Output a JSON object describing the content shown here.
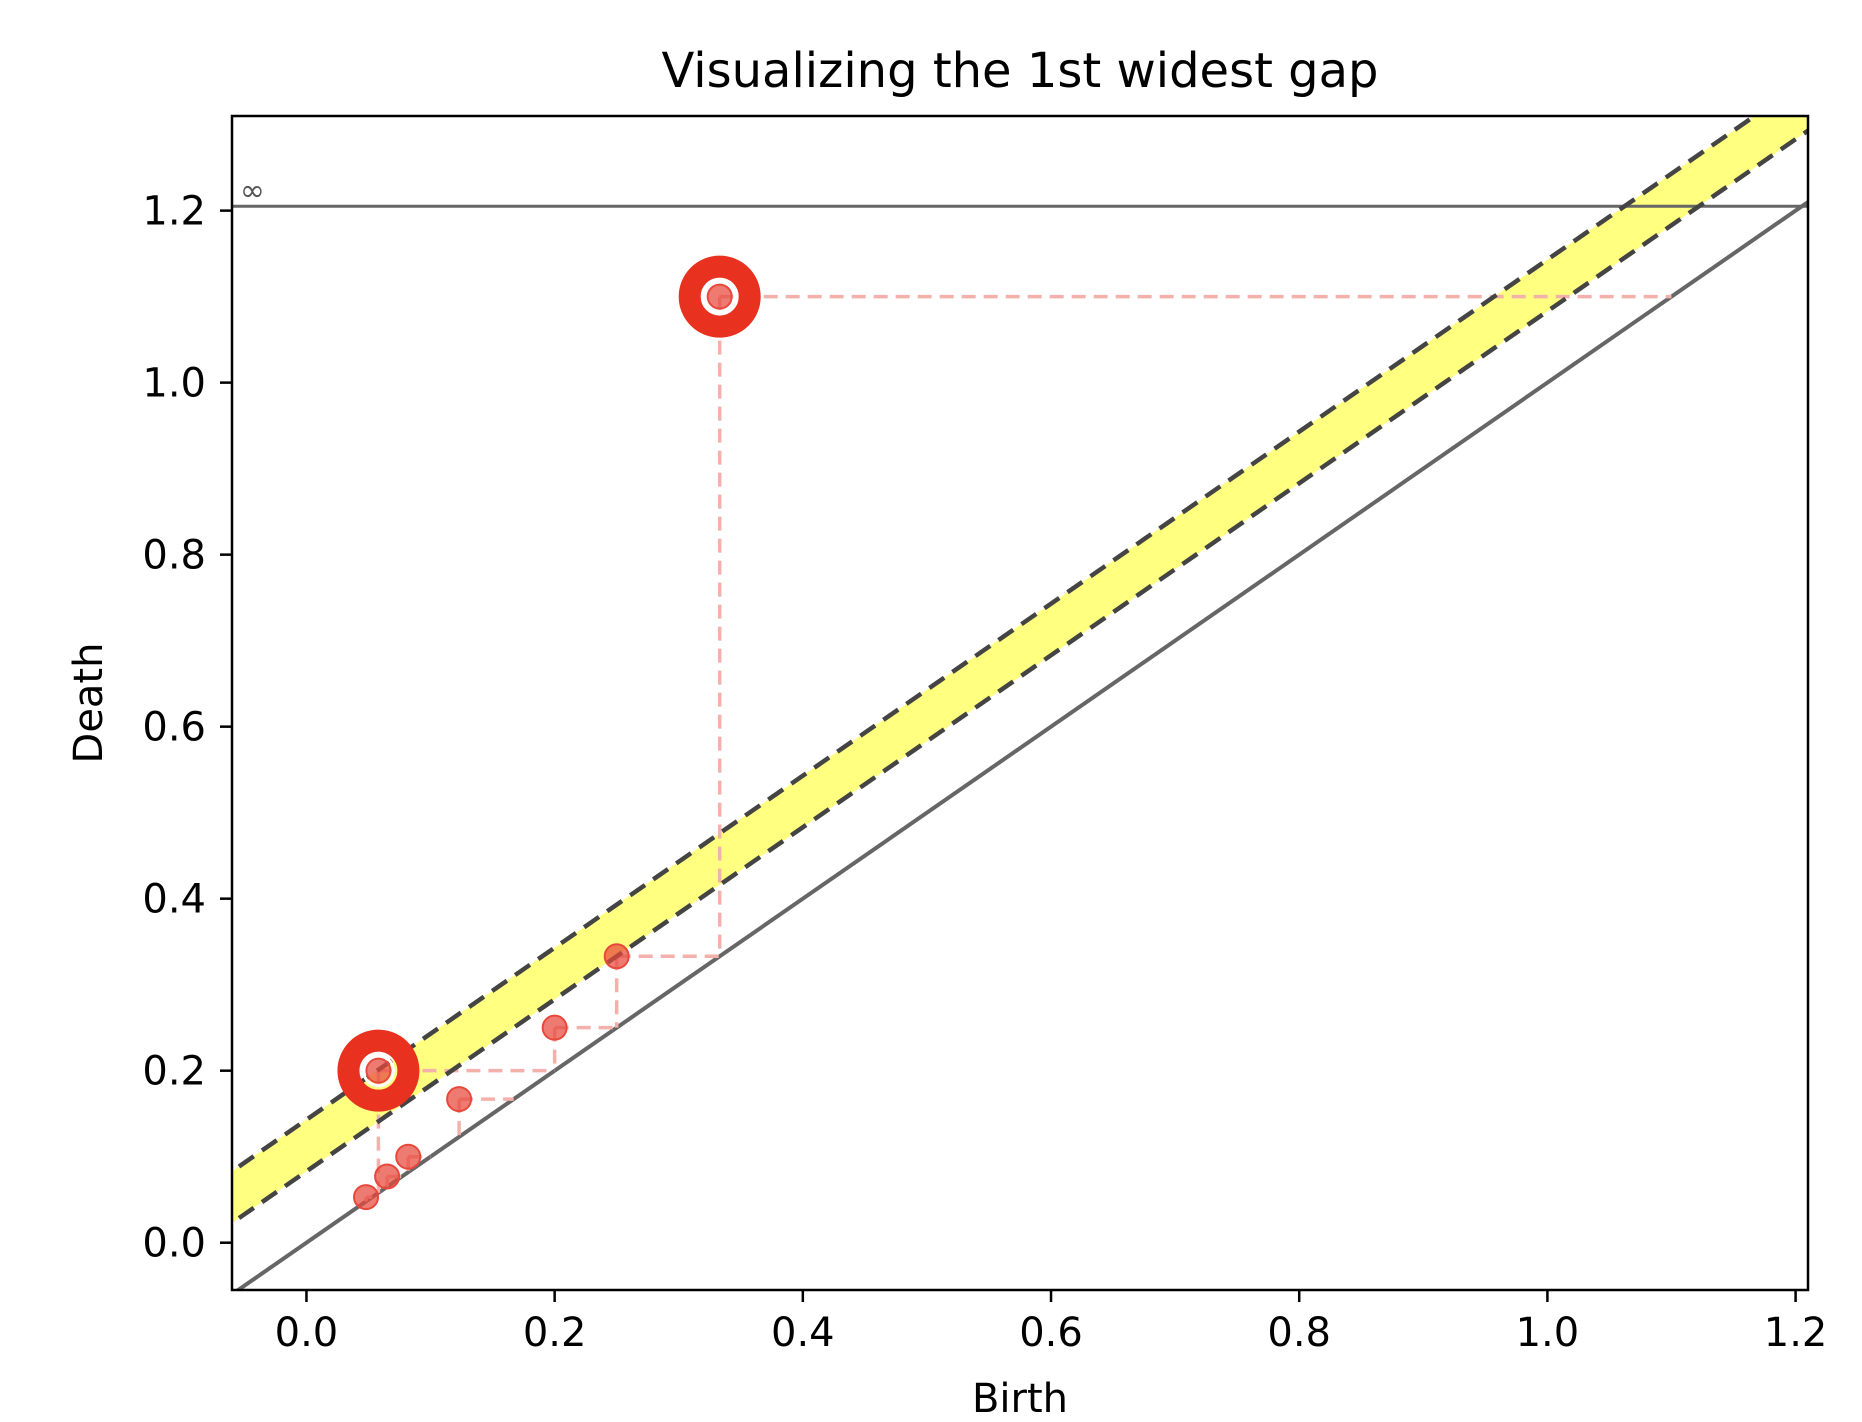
{
  "chart_data": {
    "type": "scatter",
    "title": "Visualizing the 1st widest gap",
    "xlabel": "Birth",
    "ylabel": "Death",
    "xlim": [
      -0.06,
      1.21
    ],
    "ylim": [
      -0.055,
      1.31
    ],
    "xticks": [
      0.0,
      0.2,
      0.4,
      0.6,
      0.8,
      1.0,
      1.2
    ],
    "xtick_labels": [
      "0.0",
      "0.2",
      "0.4",
      "0.6",
      "0.8",
      "1.0",
      "1.2"
    ],
    "yticks": [
      0.0,
      0.2,
      0.4,
      0.6,
      0.8,
      1.0,
      1.2
    ],
    "ytick_labels": [
      "0.0",
      "0.2",
      "0.4",
      "0.6",
      "0.8",
      "1.0",
      "1.2"
    ],
    "infinity_level": 1.205,
    "infinity_label": "∞",
    "grid": false,
    "diagonal": true,
    "points": [
      {
        "birth": 0.048,
        "death": 0.053
      },
      {
        "birth": 0.065,
        "death": 0.077
      },
      {
        "birth": 0.082,
        "death": 0.1
      },
      {
        "birth": 0.058,
        "death": 0.2
      },
      {
        "birth": 0.123,
        "death": 0.167
      },
      {
        "birth": 0.2,
        "death": 0.25
      },
      {
        "birth": 0.25,
        "death": 0.333
      },
      {
        "birth": 0.333,
        "death": 1.1
      }
    ],
    "gap_band": {
      "lower_offset": 0.083,
      "upper_offset": 0.143
    },
    "highlighted_points": [
      {
        "birth": 0.058,
        "death": 0.2
      },
      {
        "birth": 0.333,
        "death": 1.1
      }
    ],
    "colors": {
      "points": "#e8483c",
      "highlight_ring": "#e8321f",
      "band_fill": "#ffff80",
      "band_edges": "#444444",
      "diagonal": "#666666",
      "infinity_line": "#666666",
      "guide_lines": "#f4b0aa"
    }
  }
}
